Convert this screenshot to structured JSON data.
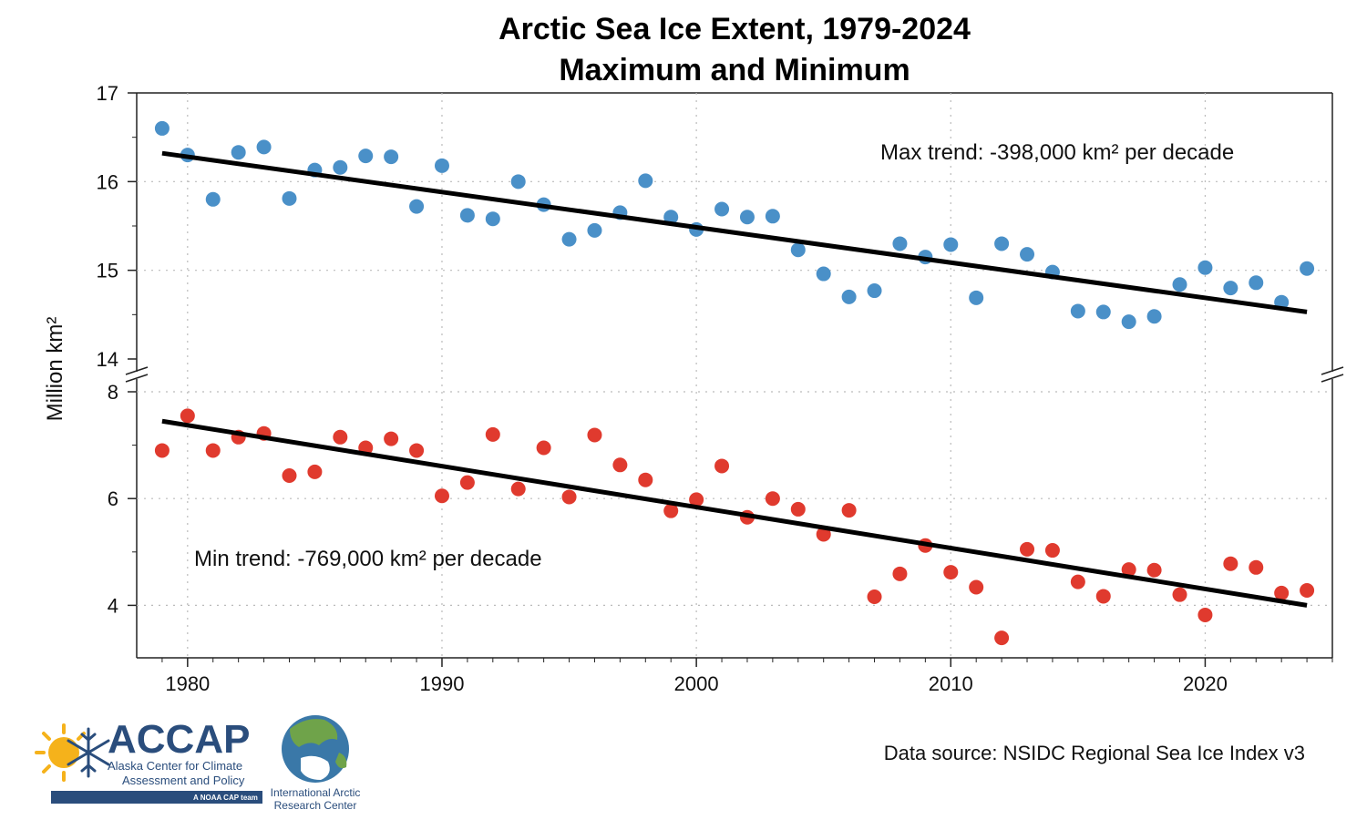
{
  "chart_data": {
    "type": "scatter",
    "title": "Arctic Sea Ice Extent, 1979-2024",
    "subtitle": "Maximum and Minimum",
    "ylabel": "Million km²",
    "xlim": [
      1978,
      2025
    ],
    "x_ticks": [
      1980,
      1990,
      2000,
      2010,
      2020
    ],
    "grid": true,
    "panels": [
      {
        "name": "maximum",
        "ylim": [
          14,
          17
        ],
        "y_ticks": [
          14,
          15,
          16,
          17
        ],
        "color": "#4a90c8",
        "trend_label": "Max trend: -398,000 km² per decade",
        "trend_line": {
          "x": [
            1979,
            2024
          ],
          "y": [
            16.32,
            14.53
          ]
        },
        "series": {
          "x": [
            1979,
            1980,
            1981,
            1982,
            1983,
            1984,
            1985,
            1986,
            1987,
            1988,
            1989,
            1990,
            1991,
            1992,
            1993,
            1994,
            1995,
            1996,
            1997,
            1998,
            1999,
            2000,
            2001,
            2002,
            2003,
            2004,
            2005,
            2006,
            2007,
            2008,
            2009,
            2010,
            2011,
            2012,
            2013,
            2014,
            2015,
            2016,
            2017,
            2018,
            2019,
            2020,
            2021,
            2022,
            2023,
            2024
          ],
          "y": [
            16.6,
            16.3,
            15.8,
            16.33,
            16.39,
            15.81,
            16.13,
            16.16,
            16.29,
            16.28,
            15.72,
            16.18,
            15.62,
            15.58,
            16.0,
            15.74,
            15.35,
            15.45,
            15.65,
            16.01,
            15.6,
            15.46,
            15.69,
            15.6,
            15.61,
            15.23,
            14.96,
            14.7,
            14.77,
            15.3,
            15.15,
            15.29,
            14.69,
            15.3,
            15.18,
            14.98,
            14.54,
            14.53,
            14.42,
            14.48,
            14.84,
            15.03,
            14.8,
            14.86,
            14.64,
            15.02
          ]
        }
      },
      {
        "name": "minimum",
        "ylim": [
          3,
          8
        ],
        "y_ticks": [
          4,
          6,
          8
        ],
        "color": "#e03a2e",
        "trend_label": "Min trend: -769,000 km² per decade",
        "trend_line": {
          "x": [
            1979,
            2024
          ],
          "y": [
            7.45,
            4.0
          ]
        },
        "series": {
          "x": [
            1979,
            1980,
            1981,
            1982,
            1983,
            1984,
            1985,
            1986,
            1987,
            1988,
            1989,
            1990,
            1991,
            1992,
            1993,
            1994,
            1995,
            1996,
            1997,
            1998,
            1999,
            2000,
            2001,
            2002,
            2003,
            2004,
            2005,
            2006,
            2007,
            2008,
            2009,
            2010,
            2011,
            2012,
            2013,
            2014,
            2015,
            2016,
            2017,
            2018,
            2019,
            2020,
            2021,
            2022,
            2023,
            2024
          ],
          "y": [
            6.9,
            7.55,
            6.9,
            7.15,
            7.22,
            6.43,
            6.5,
            7.15,
            6.95,
            7.12,
            6.9,
            6.05,
            6.3,
            7.2,
            6.18,
            6.95,
            6.03,
            7.19,
            6.63,
            6.35,
            5.77,
            5.98,
            6.61,
            5.65,
            6.0,
            5.8,
            5.33,
            5.78,
            4.16,
            4.59,
            5.12,
            4.62,
            4.34,
            3.39,
            5.05,
            5.03,
            4.44,
            4.17,
            4.67,
            4.66,
            4.2,
            3.82,
            4.78,
            4.71,
            4.23,
            4.28
          ]
        }
      }
    ]
  },
  "source": "Data source: NSIDC Regional Sea Ice Index v3",
  "logos": {
    "accap_name": "ACCAP",
    "accap_line1": "Alaska Center for Climate",
    "accap_line2": "Assessment and Policy",
    "accap_tag": "A NOAA CAP team",
    "iarc_line1": "International Arctic",
    "iarc_line2": "Research Center"
  }
}
